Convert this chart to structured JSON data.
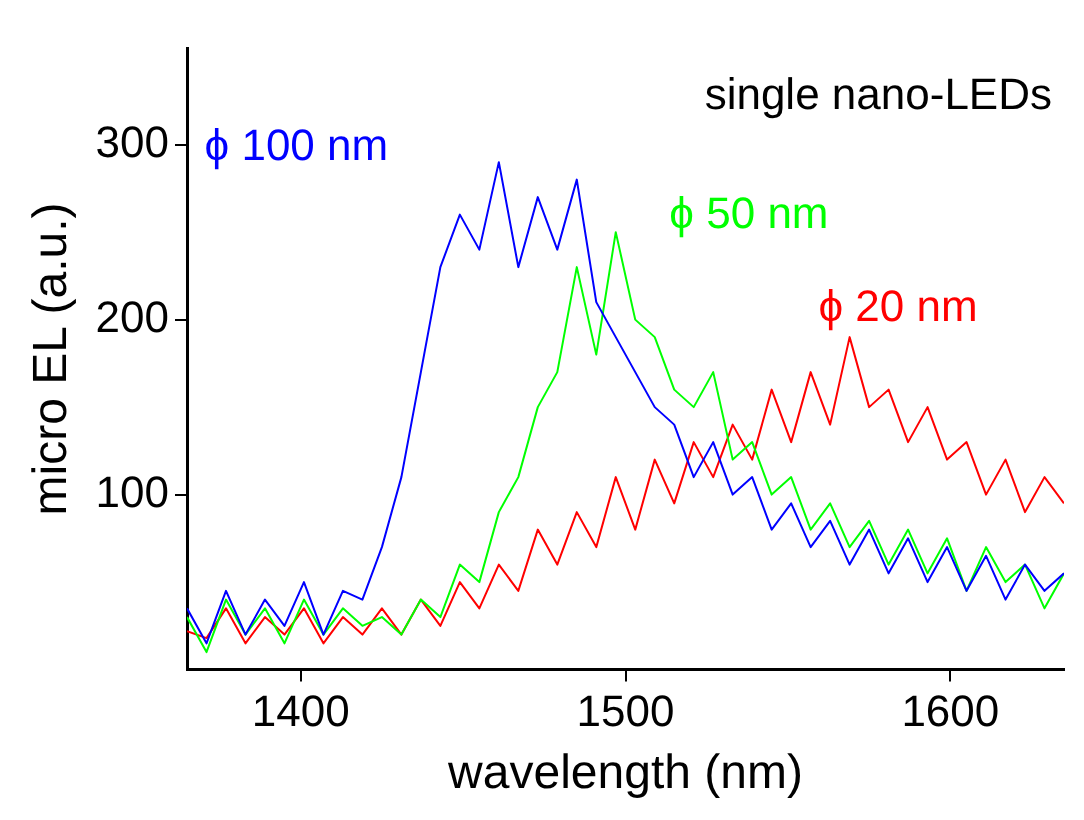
{
  "chart_data": {
    "type": "line",
    "xlabel": "wavelength (nm)",
    "ylabel": "micro EL (a.u.)",
    "annotations": [
      "single nano-LEDs"
    ],
    "x": [
      1365,
      1371,
      1377,
      1383,
      1389,
      1395,
      1401,
      1407,
      1413,
      1419,
      1425,
      1431,
      1437,
      1443,
      1449,
      1455,
      1461,
      1467,
      1473,
      1479,
      1485,
      1491,
      1497,
      1503,
      1509,
      1515,
      1521,
      1527,
      1533,
      1539,
      1545,
      1551,
      1557,
      1563,
      1569,
      1575,
      1581,
      1587,
      1593,
      1599,
      1605,
      1611,
      1617,
      1623,
      1629,
      1635
    ],
    "series": [
      {
        "name": "ϕ 100 nm",
        "color": "#0000ff",
        "values": [
          35,
          15,
          45,
          20,
          40,
          25,
          50,
          20,
          45,
          40,
          70,
          110,
          170,
          230,
          260,
          240,
          290,
          230,
          270,
          240,
          280,
          210,
          190,
          170,
          150,
          140,
          110,
          130,
          100,
          110,
          80,
          95,
          70,
          85,
          60,
          80,
          55,
          75,
          50,
          70,
          45,
          65,
          40,
          60,
          45,
          55
        ]
      },
      {
        "name": "ϕ 50 nm",
        "color": "#00ff00",
        "values": [
          30,
          10,
          40,
          20,
          35,
          15,
          40,
          20,
          35,
          25,
          30,
          20,
          40,
          30,
          60,
          50,
          90,
          110,
          150,
          170,
          230,
          180,
          250,
          200,
          190,
          160,
          150,
          170,
          120,
          130,
          100,
          110,
          80,
          95,
          70,
          85,
          60,
          80,
          55,
          75,
          45,
          70,
          50,
          60,
          35,
          55
        ]
      },
      {
        "name": "ϕ 20 nm",
        "color": "#ff0000",
        "values": [
          22,
          18,
          35,
          15,
          30,
          20,
          35,
          15,
          30,
          20,
          35,
          20,
          40,
          25,
          50,
          35,
          60,
          45,
          80,
          60,
          90,
          70,
          110,
          80,
          120,
          95,
          130,
          110,
          140,
          120,
          160,
          130,
          170,
          140,
          190,
          150,
          160,
          130,
          150,
          120,
          130,
          100,
          120,
          90,
          110,
          95
        ]
      }
    ],
    "xlim": [
      1365,
      1635
    ],
    "ylim": [
      0,
      355
    ],
    "xticks": [
      1400,
      1500,
      1600
    ],
    "yticks": [
      100,
      200,
      300
    ],
    "grid": false,
    "legend": false,
    "marker": "none",
    "line_style": "solid"
  }
}
